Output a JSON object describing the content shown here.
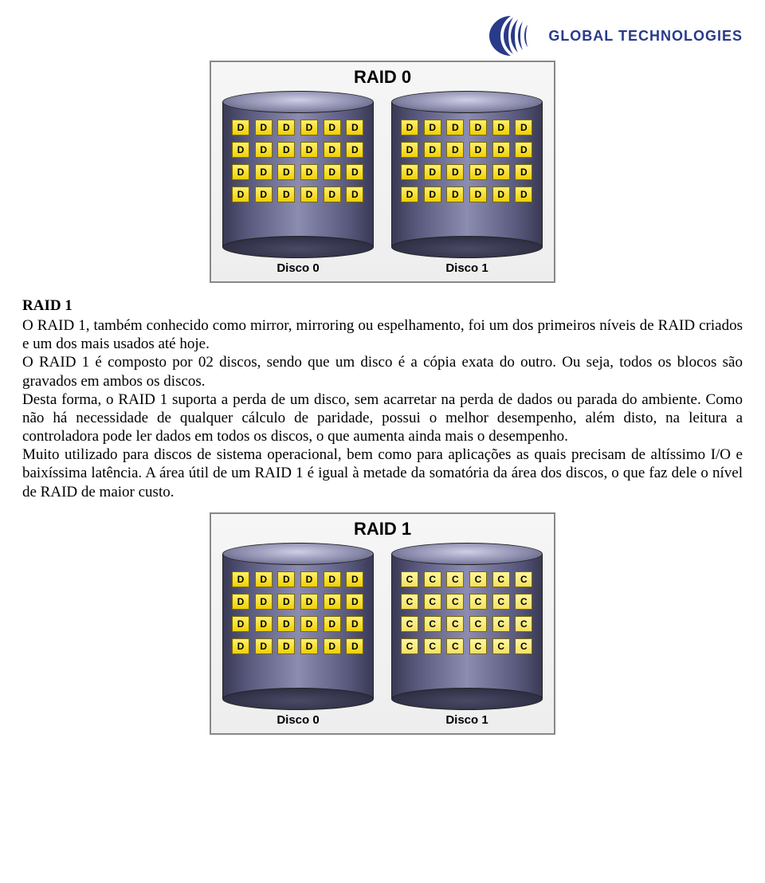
{
  "brand": "GLOBAL TECHNOLOGIES",
  "logo_color": "#2a3a8a",
  "diagram0": {
    "title": "RAID 0",
    "box_border": "#888888",
    "box_bg_top": "#f6f6f6",
    "box_bg_bottom": "#eeeeee",
    "disk_body_gradient": [
      "#3a3a55",
      "#5b5b80",
      "#8c8cb0",
      "#5b5b80",
      "#3a3a55"
    ],
    "block_D_colors": [
      "#fff070",
      "#f0d000"
    ],
    "disks": [
      {
        "label": "Disco 0",
        "rows": 4,
        "cols": 6,
        "block_letter": "D"
      },
      {
        "label": "Disco 1",
        "rows": 4,
        "cols": 6,
        "block_letter": "D"
      }
    ]
  },
  "section": {
    "heading": "RAID 1",
    "body": "O RAID 1, também conhecido como mirror, mirroring ou espelhamento, foi um dos primeiros níveis de RAID criados e um dos mais usados até hoje.\nO RAID 1 é composto por 02 discos, sendo que um disco é a cópia exata do outro. Ou seja, todos os blocos são gravados em ambos os discos.\nDesta forma, o RAID 1 suporta a perda de um disco, sem acarretar na perda de dados ou parada do ambiente. Como não há necessidade de qualquer cálculo de paridade, possui o melhor desempenho, além disto, na leitura a controladora pode ler dados em todos os discos, o que aumenta ainda mais o desempenho.\nMuito utilizado para discos de sistema operacional, bem como para aplicações as quais precisam de altíssimo I/O e baixíssima latência. A área útil de um RAID 1 é igual à metade da somatória da área dos discos, o que faz dele o nível de RAID de maior custo."
  },
  "diagram1": {
    "title": "RAID 1",
    "block_C_colors": [
      "#fff7a0",
      "#f4e060"
    ],
    "disks": [
      {
        "label": "Disco 0",
        "rows": 4,
        "cols": 6,
        "block_letter": "D"
      },
      {
        "label": "Disco 1",
        "rows": 4,
        "cols": 6,
        "block_letter": "C"
      }
    ]
  }
}
